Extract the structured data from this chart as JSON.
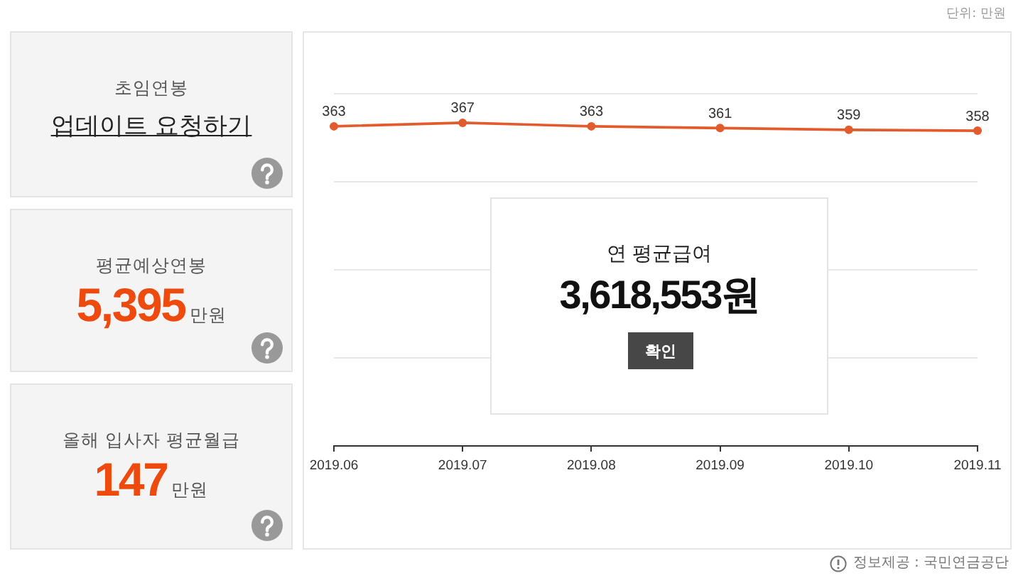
{
  "chart_data": [
    {
      "type": "other",
      "title": "초임연봉",
      "annotations": [
        "업데이트 요청하기"
      ]
    },
    {
      "type": "other",
      "title": "평균예상연봉",
      "annotations": [
        "5,395",
        "만원"
      ],
      "color": "#ef4a0e"
    },
    {
      "type": "other",
      "title": "올해 입사자 평균월급",
      "annotations": [
        "147",
        "만원"
      ],
      "color": "#ef4a0e"
    },
    {
      "type": "line",
      "categories": [
        "2019.06",
        "2019.07",
        "2019.08",
        "2019.09",
        "2019.10",
        "2019.11"
      ],
      "values": [
        363,
        367,
        363,
        361,
        359,
        358
      ],
      "color": "#e35a2c",
      "ylim": [
        0,
        400
      ],
      "yticks": [
        {
          "value": 0,
          "label": null
        },
        {
          "value": 100,
          "label": null
        },
        {
          "value": 200,
          "label": null
        },
        {
          "value": 300,
          "label": null
        },
        {
          "value": 400,
          "label": null
        }
      ],
      "tick_labels": "x",
      "grid": "y",
      "marker": "circle",
      "data_labels": true,
      "annotations": [
        "단위: 만원",
        "정보제공 : 국민연금공단"
      ]
    },
    {
      "type": "other",
      "title": "연 평균급여",
      "annotations": [
        "3,618,553원",
        "확인"
      ]
    }
  ]
}
